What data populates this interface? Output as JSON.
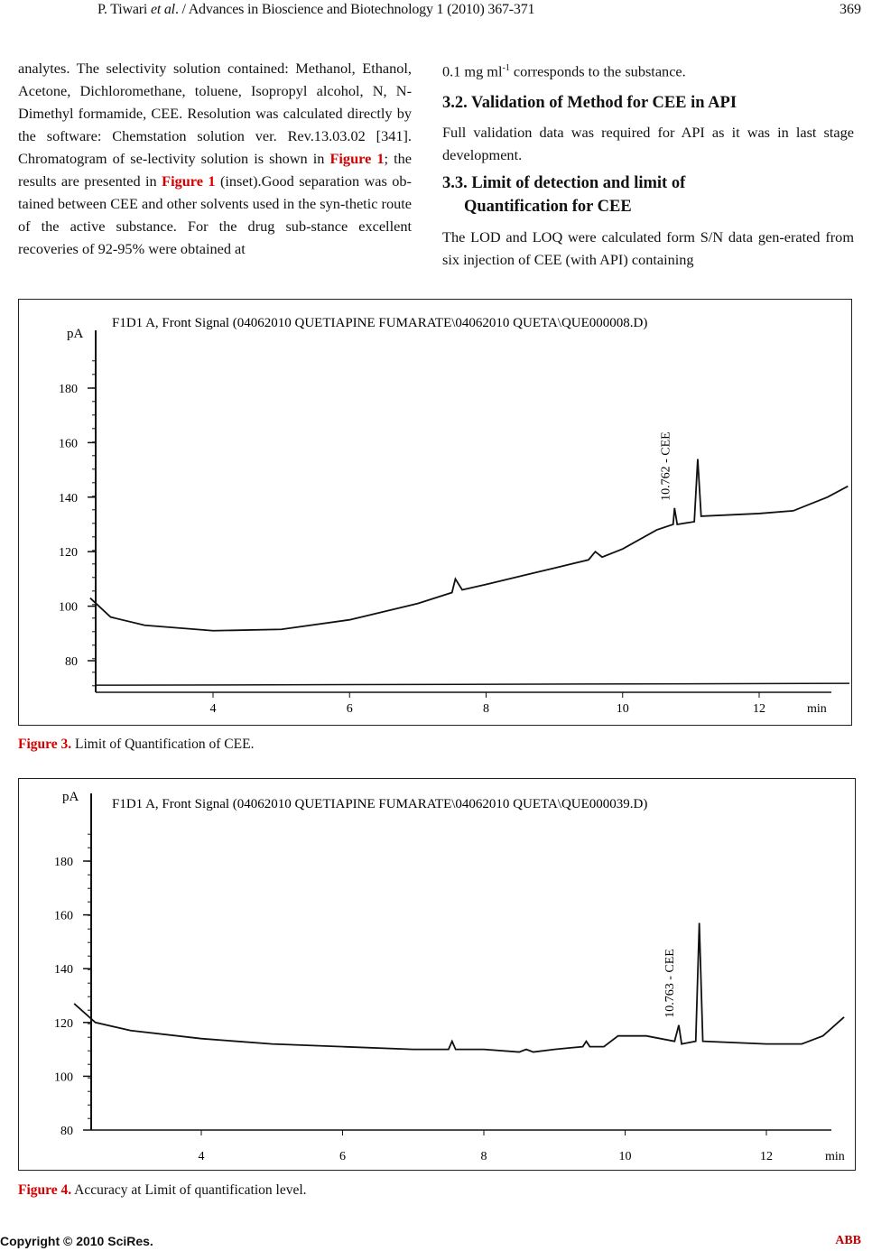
{
  "header": {
    "running_title_pre": "P. Tiwari ",
    "running_title_em": "et al",
    "running_title_post": ". / Advances in Bioscience and Biotechnology 1 (2010) 367-371",
    "page_number": "369"
  },
  "left_column": {
    "p1_a": "analytes. The selectivity solution contained: Methanol, Ethanol, Acetone, Dichloromethane, toluene, Isopropyl alcohol, N, N-Dimethyl formamide, CEE. Resolution was calculated directly by the software: Chemstation solution ver. Rev.13.03.02 [341]. Chromatogram of se-lectivity solution is shown in ",
    "fig_ref1": "Figure 1",
    "p1_b": "; the results are presented in ",
    "fig_ref2": "Figure 1",
    "p1_c": " (inset).Good separation was ob-tained between CEE and other solvents used in the syn-thetic route of the active substance. For the drug sub-stance excellent recoveries of 92-95% were obtained at"
  },
  "right_column": {
    "p0_a": "0.1 mg ml",
    "p0_sup": "-1",
    "p0_b": " corresponds to the substance.",
    "h32": "3.2. Validation of Method for CEE in API",
    "p32": "Full validation data was required for API as it was in last stage development.",
    "h33_l1": "3.3. Limit of detection and limit of",
    "h33_l2": "Quantification for CEE",
    "p33": "The LOD and LOQ were calculated form S/N data gen-erated from six injection of CEE (with API) containing"
  },
  "chart_data": [
    {
      "type": "line",
      "title": "F1D1 A, Front Signal (04062010 QUETIAPINE FUMARATE\\04062010 QUETA\\QUE000008.D)",
      "ylabel": "pA",
      "xlabel": "min",
      "xticks": [
        4,
        6,
        8,
        10,
        12
      ],
      "yticks": [
        80,
        100,
        120,
        140,
        160,
        180
      ],
      "xlim": [
        2.2,
        13.5
      ],
      "ylim": [
        70,
        190
      ],
      "annotation": {
        "label": "10.762 - CEE",
        "x": 10.762
      },
      "x": [
        2.2,
        2.5,
        3,
        4,
        5,
        6,
        7,
        7.5,
        7.55,
        7.65,
        8,
        9,
        9.5,
        9.6,
        9.7,
        10,
        10.5,
        10.74,
        10.76,
        10.8,
        11.05,
        11.1,
        11.15,
        12,
        12.5,
        13,
        13.3
      ],
      "y": [
        103,
        96,
        93,
        91,
        91.5,
        95,
        101,
        105,
        110,
        106,
        108,
        114,
        117,
        120,
        118,
        121,
        128,
        130,
        136,
        130,
        131,
        154,
        133,
        134,
        135,
        140,
        144
      ],
      "baseline": 71,
      "caption_label": "Figure 3.",
      "caption_text": " Limit of Quantification of CEE."
    },
    {
      "type": "line",
      "title": "F1D1 A, Front Signal (04062010 QUETIAPINE FUMARATE\\04062010 QUETA\\QUE000039.D)",
      "ylabel": "pA",
      "xlabel": "min",
      "xticks": [
        4,
        6,
        8,
        10,
        12
      ],
      "yticks": [
        80,
        100,
        120,
        140,
        160,
        180
      ],
      "xlim": [
        2.2,
        13.5
      ],
      "ylim": [
        78,
        190
      ],
      "annotation": {
        "label": "10.763 - CEE",
        "x": 10.763
      },
      "x": [
        2.2,
        2.5,
        3,
        4,
        5,
        6,
        7,
        7.5,
        7.55,
        7.6,
        8,
        8.5,
        8.6,
        8.7,
        9,
        9.4,
        9.45,
        9.5,
        9.7,
        9.9,
        10.3,
        10.7,
        10.76,
        10.8,
        11.0,
        11.05,
        11.1,
        12,
        12.5,
        12.8,
        13.1
      ],
      "y": [
        127,
        120,
        117,
        114,
        112,
        111,
        110,
        110,
        113,
        110,
        110,
        109,
        110,
        109,
        110,
        111,
        113,
        111,
        111,
        115,
        115,
        113,
        119,
        112,
        113,
        157,
        113,
        112,
        112,
        115,
        122
      ],
      "caption_label": "Figure 4.",
      "caption_text": " Accuracy at Limit of quantification level."
    }
  ],
  "footer": {
    "copyright": "Copyright © 2010 SciRes.",
    "journal": "ABB"
  }
}
